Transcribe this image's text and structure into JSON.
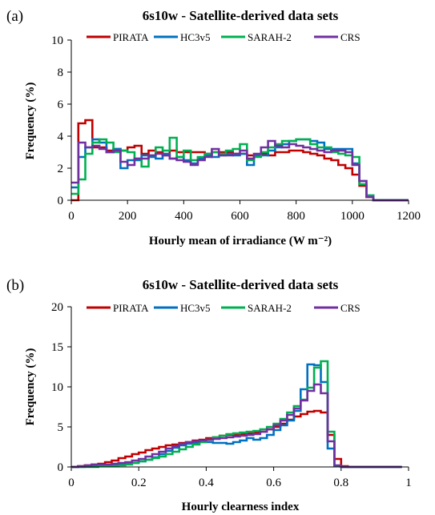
{
  "chart_data": [
    {
      "panel": "(a)",
      "type": "line",
      "title": "6s10w - Satellite-derived data sets",
      "xlabel": "Hourly mean of irradiance (W m⁻²)",
      "ylabel": "Frequency (%)",
      "xlim": [
        0,
        1200
      ],
      "ylim": [
        0,
        10
      ],
      "xticks": [
        0,
        200,
        400,
        600,
        800,
        1000,
        1200
      ],
      "yticks": [
        0,
        2,
        4,
        6,
        8,
        10
      ],
      "legend_position": "top",
      "grid": false,
      "step": "post",
      "x": [
        0,
        25,
        50,
        75,
        100,
        125,
        150,
        175,
        200,
        225,
        250,
        275,
        300,
        325,
        350,
        375,
        400,
        425,
        450,
        475,
        500,
        525,
        550,
        575,
        600,
        625,
        650,
        675,
        700,
        725,
        750,
        775,
        800,
        825,
        850,
        875,
        900,
        925,
        950,
        975,
        1000,
        1025,
        1050,
        1075,
        1100,
        1125,
        1150,
        1175
      ],
      "series": [
        {
          "name": "PIRATA",
          "color": "#c00000",
          "values": [
            0.0,
            4.8,
            5.0,
            3.3,
            3.3,
            3.1,
            3.2,
            3.1,
            3.3,
            3.4,
            2.9,
            3.1,
            3.0,
            2.8,
            3.1,
            3.0,
            3.0,
            3.0,
            3.0,
            2.9,
            3.0,
            3.0,
            3.0,
            2.9,
            2.9,
            2.8,
            2.8,
            2.9,
            2.8,
            3.0,
            3.0,
            3.1,
            3.1,
            3.0,
            2.9,
            2.8,
            2.6,
            2.5,
            2.2,
            2.0,
            1.6,
            0.9,
            0.2,
            0.0,
            0.0,
            0.0,
            0.0,
            0.0
          ]
        },
        {
          "name": "HC3v5",
          "color": "#0070c0",
          "values": [
            0.8,
            2.7,
            3.3,
            3.8,
            3.6,
            3.0,
            3.2,
            2.0,
            2.5,
            2.5,
            2.8,
            2.7,
            2.6,
            2.9,
            2.6,
            2.7,
            2.5,
            2.3,
            2.6,
            2.8,
            2.7,
            2.8,
            2.9,
            2.8,
            2.9,
            2.2,
            2.8,
            2.8,
            3.1,
            3.3,
            3.5,
            3.7,
            3.8,
            3.8,
            3.7,
            3.6,
            3.2,
            3.2,
            3.2,
            3.2,
            2.3,
            1.2,
            0.3,
            0.0,
            0.0,
            0.0,
            0.0,
            0.0
          ]
        },
        {
          "name": "SARAH-2",
          "color": "#00b050",
          "values": [
            0.4,
            1.3,
            2.9,
            3.6,
            3.8,
            3.6,
            3.0,
            3.1,
            3.0,
            2.6,
            2.1,
            2.8,
            3.3,
            3.1,
            3.9,
            2.7,
            3.1,
            2.5,
            2.7,
            2.9,
            3.0,
            2.9,
            3.1,
            3.2,
            3.5,
            2.5,
            2.7,
            3.0,
            3.3,
            3.5,
            3.7,
            3.7,
            3.8,
            3.8,
            3.5,
            3.3,
            3.3,
            3.0,
            2.9,
            2.8,
            2.7,
            1.0,
            0.3,
            0.0,
            0.0,
            0.0,
            0.0,
            0.0
          ]
        },
        {
          "name": "CRS",
          "color": "#7030a0",
          "values": [
            1.1,
            3.6,
            3.3,
            3.4,
            3.2,
            3.0,
            3.1,
            2.4,
            2.2,
            2.6,
            2.6,
            2.8,
            2.9,
            2.8,
            2.6,
            2.5,
            2.4,
            2.2,
            2.5,
            2.7,
            3.2,
            2.8,
            2.8,
            2.9,
            3.1,
            2.6,
            2.9,
            3.3,
            3.7,
            3.4,
            3.3,
            3.5,
            3.4,
            3.3,
            3.2,
            3.1,
            3.0,
            3.1,
            3.1,
            3.0,
            2.2,
            1.2,
            0.2,
            0.0,
            0.0,
            0.0,
            0.0,
            0.0
          ]
        }
      ]
    },
    {
      "panel": "(b)",
      "type": "line",
      "title": "6s10w - Satellite-derived data sets",
      "xlabel": "Hourly clearness index",
      "ylabel": "Frequency (%)",
      "xlim": [
        0,
        1
      ],
      "ylim": [
        0,
        20
      ],
      "xticks": [
        0,
        0.2,
        0.4,
        0.6,
        0.8,
        1
      ],
      "yticks": [
        0,
        5,
        10,
        15,
        20
      ],
      "legend_position": "top",
      "grid": false,
      "step": "post",
      "x": [
        0,
        0.02,
        0.04,
        0.06,
        0.08,
        0.1,
        0.12,
        0.14,
        0.16,
        0.18,
        0.2,
        0.22,
        0.24,
        0.26,
        0.28,
        0.3,
        0.32,
        0.34,
        0.36,
        0.38,
        0.4,
        0.42,
        0.44,
        0.46,
        0.48,
        0.5,
        0.52,
        0.54,
        0.56,
        0.58,
        0.6,
        0.62,
        0.64,
        0.66,
        0.68,
        0.7,
        0.72,
        0.74,
        0.76,
        0.78,
        0.8,
        0.82,
        0.84,
        0.86,
        0.88,
        0.9,
        0.92,
        0.94,
        0.96
      ],
      "series": [
        {
          "name": "PIRATA",
          "color": "#c00000",
          "values": [
            0.0,
            0.1,
            0.2,
            0.3,
            0.4,
            0.6,
            0.8,
            1.1,
            1.3,
            1.6,
            1.8,
            2.1,
            2.3,
            2.5,
            2.7,
            2.8,
            3.0,
            3.1,
            3.3,
            3.4,
            3.6,
            3.7,
            3.9,
            4.0,
            4.0,
            4.1,
            4.2,
            4.3,
            4.4,
            4.7,
            5.0,
            5.4,
            5.9,
            6.3,
            6.6,
            6.9,
            7.0,
            6.8,
            4.0,
            1.0,
            0.1,
            0.0,
            0.0,
            0.0,
            0.0,
            0.0,
            0.0,
            0.0,
            0.0
          ]
        },
        {
          "name": "HC3v5",
          "color": "#0070c0",
          "values": [
            0.0,
            0.0,
            0.1,
            0.1,
            0.1,
            0.2,
            0.2,
            0.3,
            0.4,
            0.5,
            0.7,
            0.9,
            1.2,
            1.6,
            2.0,
            2.4,
            2.7,
            2.9,
            3.0,
            3.1,
            3.1,
            3.0,
            3.0,
            2.9,
            3.1,
            3.3,
            3.6,
            3.4,
            3.6,
            4.0,
            4.6,
            5.2,
            5.8,
            7.0,
            9.7,
            12.8,
            12.7,
            10.6,
            2.3,
            0.1,
            0.0,
            0.0,
            0.0,
            0.0,
            0.0,
            0.0,
            0.0,
            0.0,
            0.0
          ]
        },
        {
          "name": "SARAH-2",
          "color": "#00b050",
          "values": [
            0.0,
            0.0,
            0.0,
            0.0,
            0.1,
            0.1,
            0.1,
            0.2,
            0.3,
            0.5,
            0.7,
            0.9,
            1.1,
            1.3,
            1.6,
            1.9,
            2.2,
            2.5,
            2.8,
            3.1,
            3.4,
            3.7,
            3.9,
            4.1,
            4.2,
            4.3,
            4.4,
            4.5,
            4.7,
            5.0,
            5.4,
            6.0,
            6.8,
            7.6,
            8.4,
            9.9,
            12.4,
            13.2,
            4.4,
            0.1,
            0.0,
            0.0,
            0.0,
            0.0,
            0.0,
            0.0,
            0.0,
            0.0,
            0.0
          ]
        },
        {
          "name": "CRS",
          "color": "#7030a0",
          "values": [
            0.0,
            0.1,
            0.2,
            0.3,
            0.3,
            0.3,
            0.4,
            0.5,
            0.6,
            0.8,
            1.0,
            1.3,
            1.6,
            1.9,
            2.3,
            2.6,
            2.9,
            3.1,
            3.2,
            3.3,
            3.4,
            3.5,
            3.6,
            3.7,
            3.8,
            3.9,
            4.0,
            4.1,
            4.4,
            4.7,
            5.2,
            5.8,
            6.5,
            7.3,
            8.3,
            9.5,
            10.3,
            9.2,
            3.2,
            0.2,
            0.0,
            0.0,
            0.0,
            0.0,
            0.0,
            0.0,
            0.0,
            0.0,
            0.0
          ]
        }
      ]
    }
  ]
}
